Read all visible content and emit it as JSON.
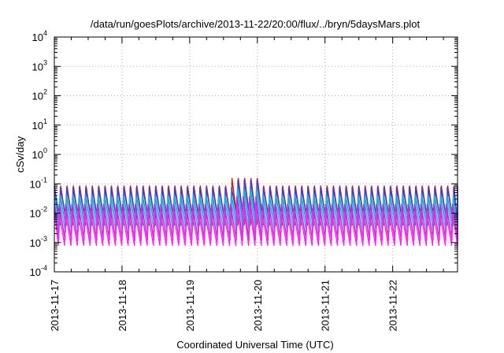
{
  "chart_data": {
    "type": "line",
    "title": "/data/run/goesPlots/archive/2013-11-22/20:00/flux/../bryn/5daysMars.plot",
    "xlabel": "Coordinated Universal Time (UTC)",
    "ylabel": "cSv/day",
    "x_tick_labels": [
      "2013-11-17",
      "2013-11-18",
      "2013-11-19",
      "2013-11-20",
      "2013-11-21",
      "2013-11-22"
    ],
    "xlim": [
      "2013-11-17 00:00",
      "2013-11-22 23:00"
    ],
    "y_scale": "log",
    "ylim": [
      0.0001,
      10000
    ],
    "y_ticks": [
      {
        "base": "10",
        "exp": "-4"
      },
      {
        "base": "10",
        "exp": "-3"
      },
      {
        "base": "10",
        "exp": "-2"
      },
      {
        "base": "10",
        "exp": "-1"
      },
      {
        "base": "10",
        "exp": "0"
      },
      {
        "base": "10",
        "exp": "1"
      },
      {
        "base": "10",
        "exp": "2"
      },
      {
        "base": "10",
        "exp": "3"
      },
      {
        "base": "10",
        "exp": "4"
      }
    ],
    "grid": true,
    "sawtooth_period_hours": 2.25,
    "series": [
      {
        "color": "#e8141e",
        "peak": 0.085,
        "trough": 0.004
      },
      {
        "color": "#3c3cd8",
        "peak": 0.075,
        "trough": 0.0055
      },
      {
        "color": "#1aa0e6",
        "peak": 0.045,
        "trough": 0.0035
      },
      {
        "color": "#20c8c8",
        "peak": 0.03,
        "trough": 0.0022
      },
      {
        "color": "#d020d0",
        "peak": 0.02,
        "trough": 0.0012
      },
      {
        "color": "#ff22ff",
        "peak": 0.012,
        "trough": 0.0008
      }
    ],
    "event": {
      "start": "2013-11-19 15:00",
      "end": "2013-11-20 01:00",
      "factor": 1.8
    }
  }
}
